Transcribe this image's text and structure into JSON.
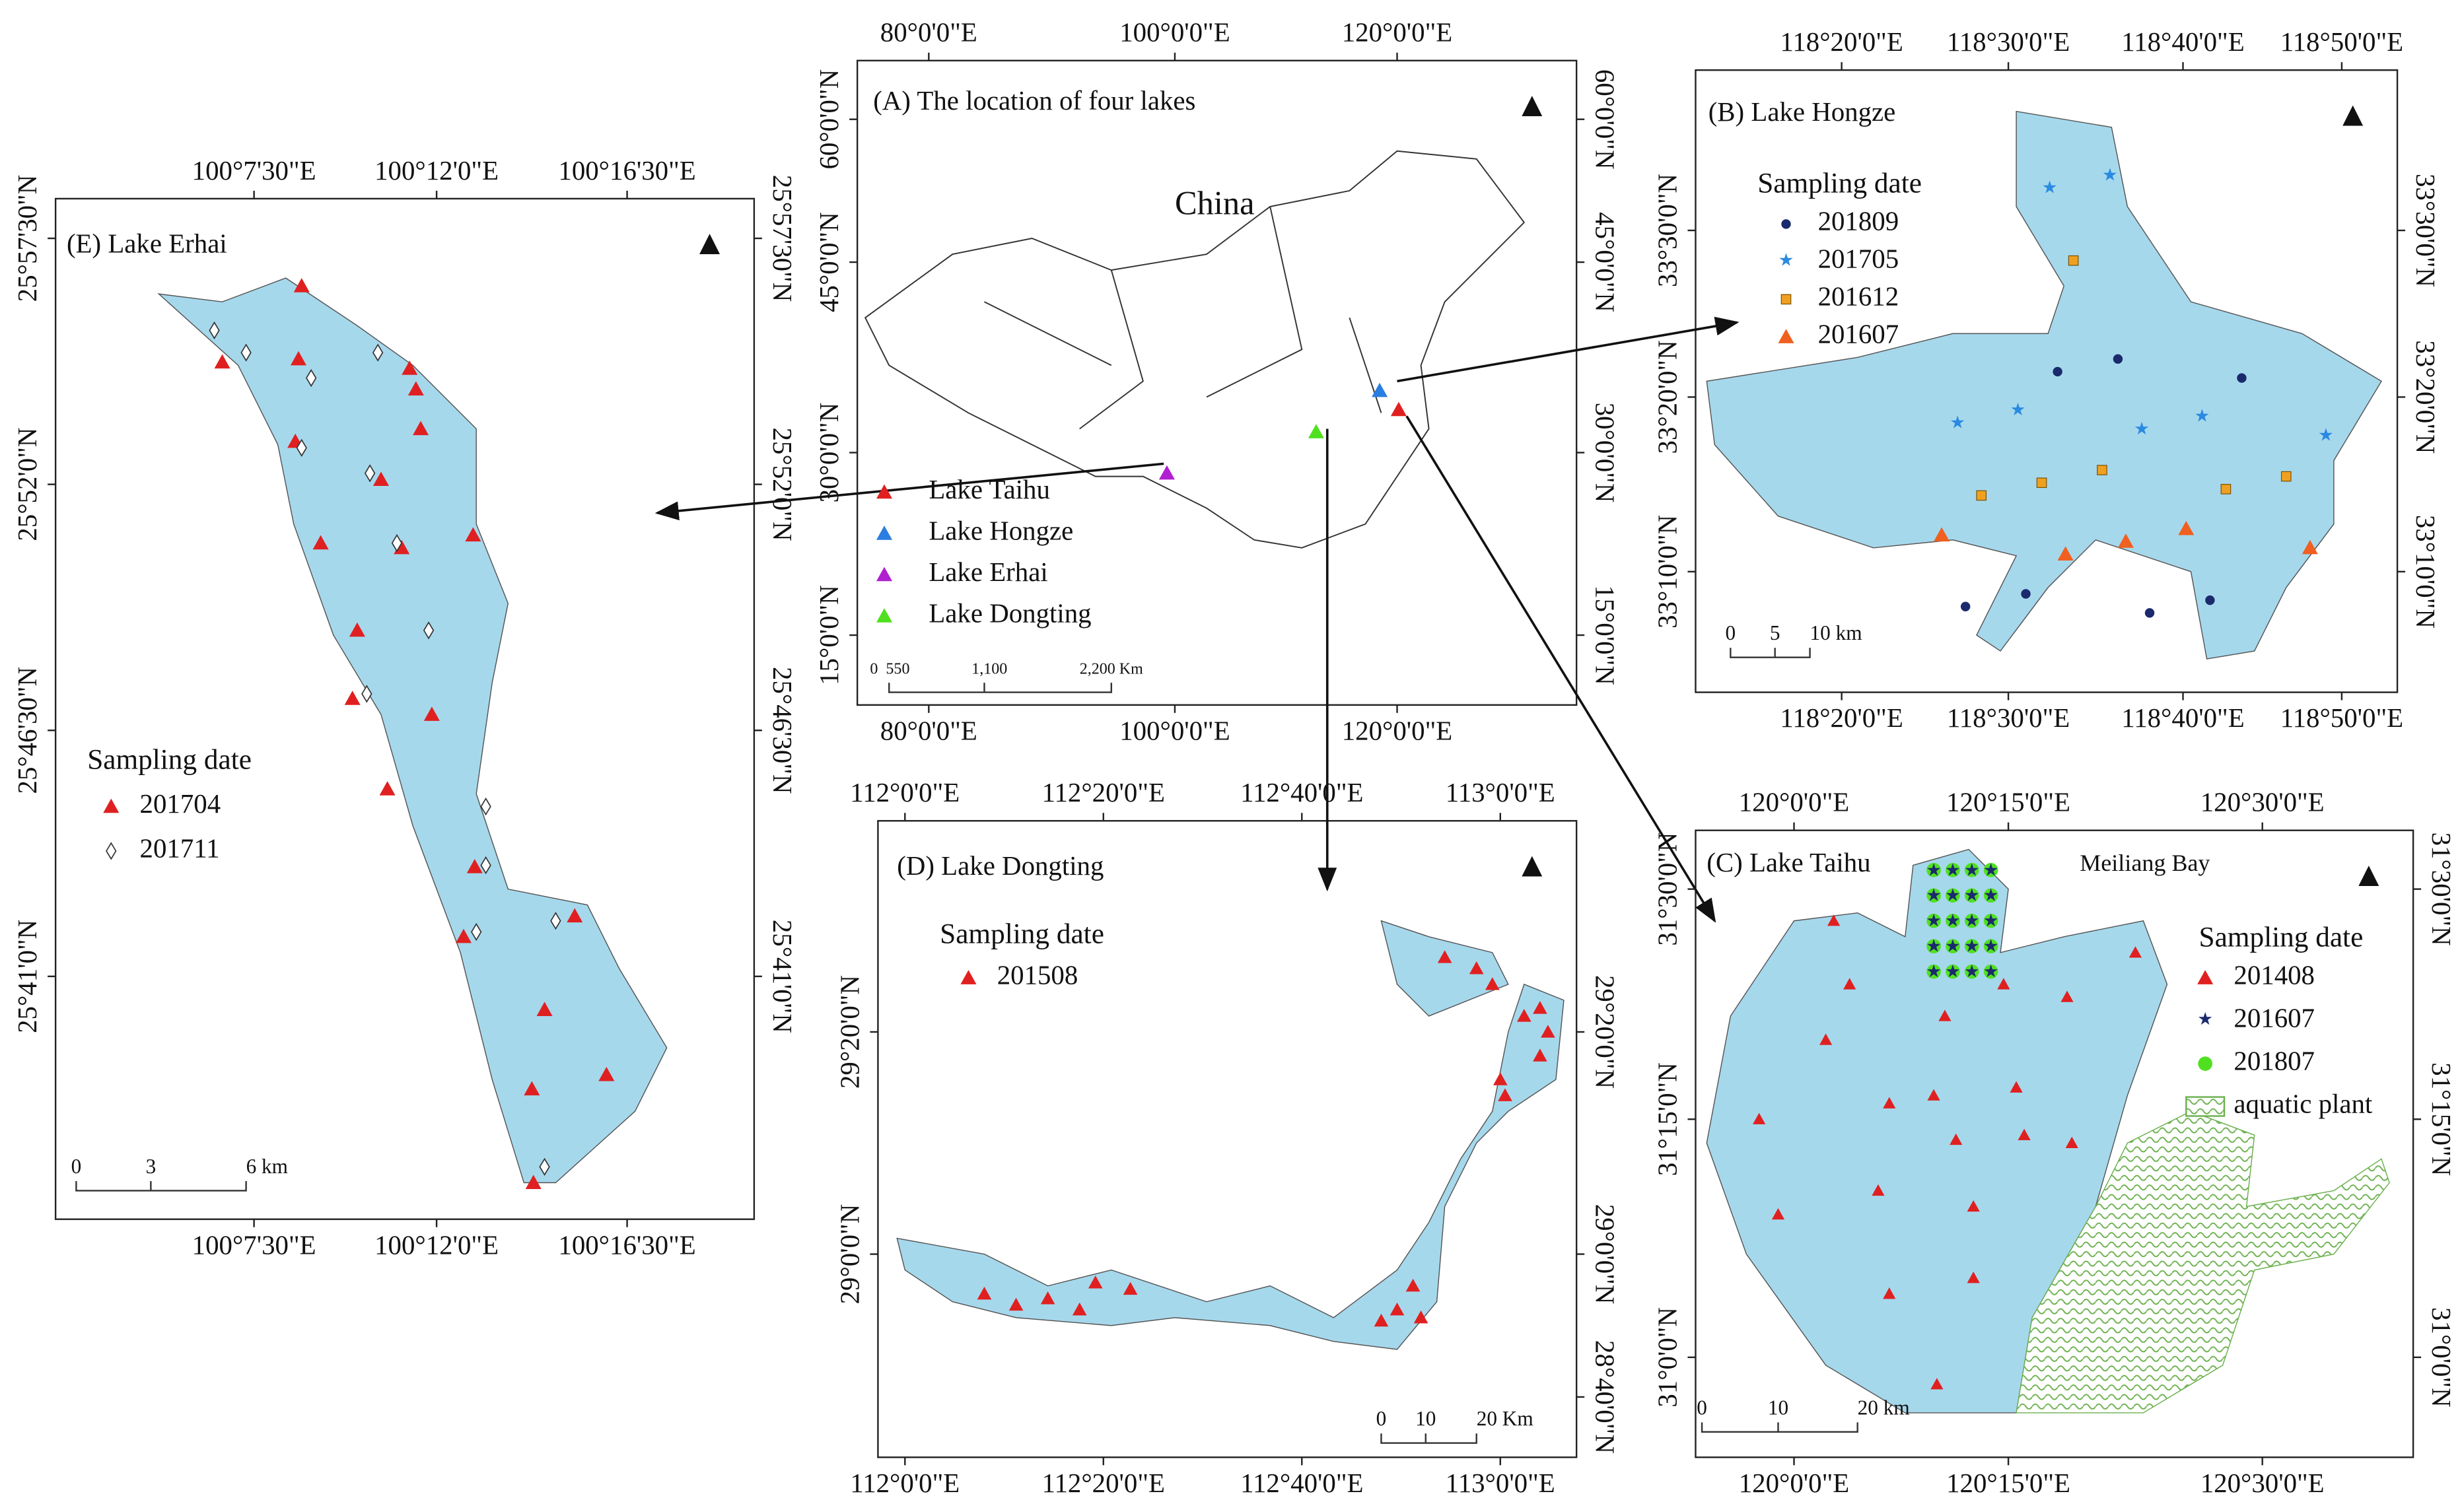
{
  "panels": [
    {
      "title": "(A) The location of four lakes",
      "top_labels": [
        "80°0'0\"E",
        "100°0'0\"E",
        "120°0'0\"E"
      ],
      "bottom_labels": [
        "80°0'0\"E",
        "100°0'0\"E",
        "120°0'0\"E"
      ],
      "left_labels": [
        "60°0'0\"N",
        "45°0'0\"N",
        "30°0'0\"N",
        "15°0'0\"N"
      ],
      "right_labels": [
        "60°0'0\"N",
        "45°0'0\"N",
        "30°0'0\"N",
        "15°0'0\"N"
      ],
      "legend_items": [
        "Lake Taihu",
        "Lake Hongze",
        "Lake Erhai",
        "Lake Dongting"
      ],
      "scale_labels": [
        "0",
        "550",
        "1,100",
        "2,200 Km"
      ],
      "country": "China"
    },
    {
      "title": "(B) Lake Hongze",
      "top_labels": [
        "118°20'0\"E",
        "118°30'0\"E",
        "118°40'0\"E",
        "118°50'0\"E"
      ],
      "bottom_labels": [
        "118°20'0\"E",
        "118°30'0\"E",
        "118°40'0\"E",
        "118°50'0\"E"
      ],
      "left_labels": [
        "33°30'0\"N",
        "33°20'0\"N",
        "33°10'0\"N"
      ],
      "right_labels": [
        "33°30'0\"N",
        "33°20'0\"N",
        "33°10'0\"N"
      ],
      "legend_title": "Sampling date",
      "legend_items": [
        "201809",
        "201705",
        "201612",
        "201607"
      ],
      "scale_labels": [
        "0",
        "5",
        "10 km"
      ]
    },
    {
      "title": "(C) Lake Taihu",
      "top_labels": [
        "120°0'0\"E",
        "120°15'0\"E",
        "120°30'0\"E"
      ],
      "bottom_labels": [
        "120°0'0\"E",
        "120°15'0\"E",
        "120°30'0\"E"
      ],
      "left_labels": [
        "31°30'0\"N",
        "31°15'0\"N",
        "31°0'0\"N"
      ],
      "right_labels": [
        "31°30'0\"N",
        "31°15'0\"N",
        "31°0'0\"N"
      ],
      "legend_title": "Sampling date",
      "legend_items": [
        "201408",
        "201607",
        "201807",
        "aquatic plant"
      ],
      "scale_labels": [
        "0",
        "10",
        "20 km"
      ],
      "bay": "Meiliang Bay"
    },
    {
      "title": "(D) Lake Dongting",
      "top_labels": [
        "112°0'0\"E",
        "112°20'0\"E",
        "112°40'0\"E",
        "113°0'0\"E"
      ],
      "bottom_labels": [
        "112°0'0\"E",
        "112°20'0\"E",
        "112°40'0\"E",
        "113°0'0\"E"
      ],
      "left_labels": [
        "29°20'0\"N",
        "29°0'0\"N"
      ],
      "right_labels": [
        "29°20'0\"N",
        "29°0'0\"N",
        "28°40'0\"N"
      ],
      "legend_title": "Sampling date",
      "legend_items": [
        "201508"
      ],
      "scale_labels": [
        "0",
        "10",
        "20 Km"
      ]
    },
    {
      "title": "(E) Lake Erhai",
      "top_labels": [
        "100°7'30\"E",
        "100°12'0\"E",
        "100°16'30\"E"
      ],
      "bottom_labels": [
        "100°7'30\"E",
        "100°12'0\"E",
        "100°16'30\"E"
      ],
      "left_labels": [
        "25°57'30\"N",
        "25°52'0\"N",
        "25°46'30\"N",
        "25°41'0\"N"
      ],
      "right_labels": [
        "25°57'30\"N",
        "25°52'0\"N",
        "25°46'30\"N",
        "25°41'0\"N"
      ],
      "legend_title": "Sampling date",
      "legend_items": [
        "201704",
        "201711"
      ],
      "scale_labels": [
        "0",
        "3",
        "6 km"
      ]
    }
  ]
}
